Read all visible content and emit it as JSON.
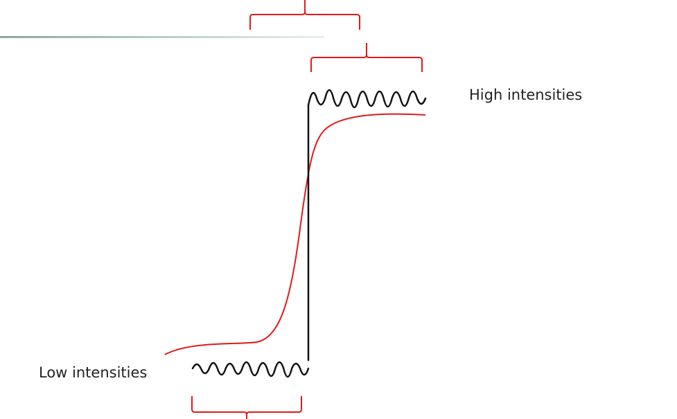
{
  "labels": {
    "high": "High intensities",
    "low": "Low intensities"
  },
  "colors": {
    "bracket": "#e01a1a",
    "smooth_curve": "#e01a1a",
    "signal": "#111111",
    "header_rule_start": "#8aa8a3",
    "header_rule_end": "#e9efee",
    "text": "#222222"
  },
  "icons": {
    "top_bracket": "curly-brace-icon",
    "high_bracket": "curly-brace-icon",
    "low_bracket": "curly-brace-icon"
  }
}
